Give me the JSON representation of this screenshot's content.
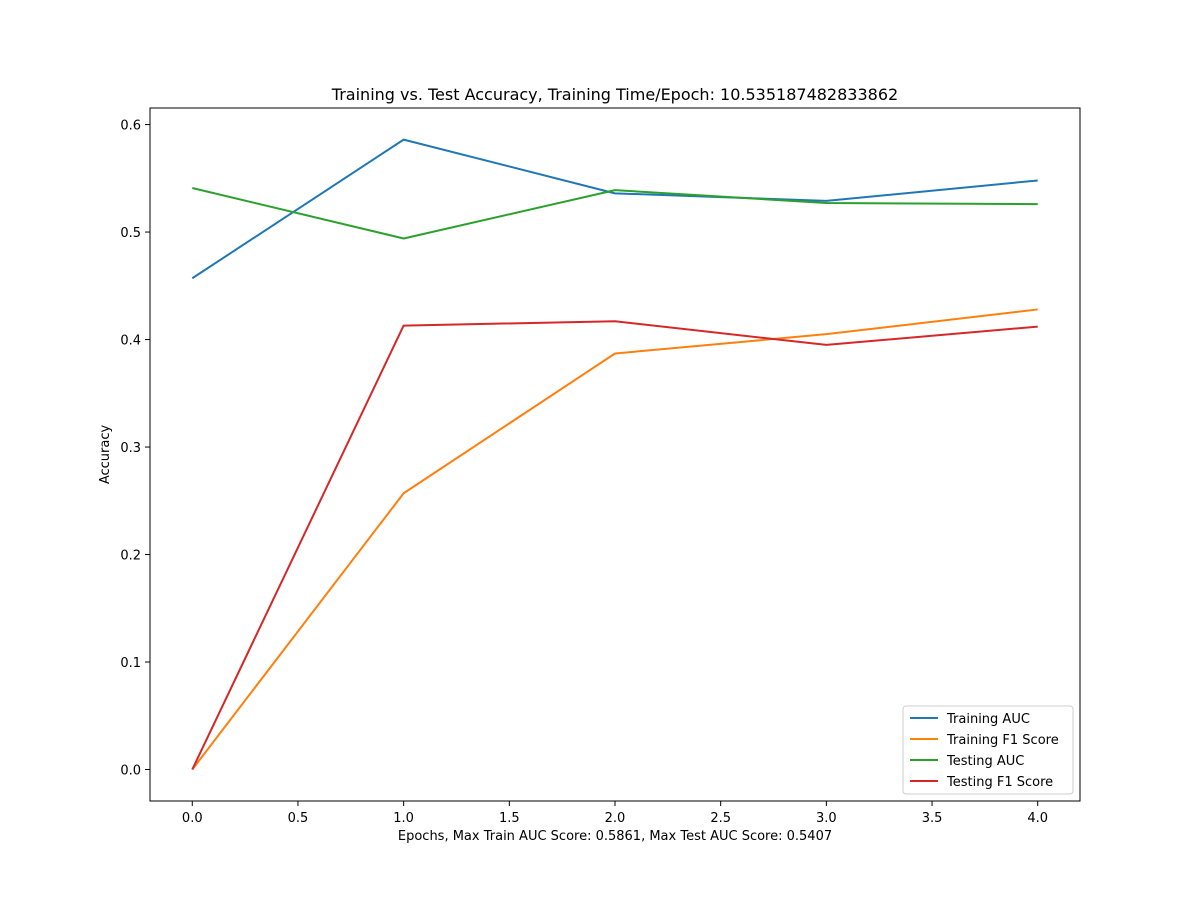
{
  "chart_data": {
    "type": "line",
    "title": "Training vs. Test Accuracy, Training Time/Epoch: 10.535187482833862",
    "xlabel": "Epochs, Max Train AUC Score: 0.5861, Max Test AUC Score: 0.5407",
    "ylabel": "Accuracy",
    "x": [
      0,
      1,
      2,
      3,
      4
    ],
    "xlim": [
      -0.2,
      4.2
    ],
    "ylim": [
      -0.0293,
      0.6154
    ],
    "xticks": [
      "0.0",
      "0.5",
      "1.0",
      "1.5",
      "2.0",
      "2.5",
      "3.0",
      "3.5",
      "4.0"
    ],
    "yticks": [
      "0.0",
      "0.1",
      "0.2",
      "0.3",
      "0.4",
      "0.5",
      "0.6"
    ],
    "grid": false,
    "legend_position": "lower-right",
    "series": [
      {
        "name": "Training AUC",
        "color": "#1f77b4",
        "values": [
          0.457,
          0.586,
          0.536,
          0.529,
          0.548
        ]
      },
      {
        "name": "Training F1 Score",
        "color": "#ff7f0e",
        "values": [
          0.0,
          0.257,
          0.387,
          0.405,
          0.428
        ]
      },
      {
        "name": "Testing AUC",
        "color": "#2ca02c",
        "values": [
          0.541,
          0.494,
          0.539,
          0.527,
          0.526
        ]
      },
      {
        "name": "Testing F1 Score",
        "color": "#d62728",
        "values": [
          0.0,
          0.413,
          0.417,
          0.395,
          0.412
        ]
      }
    ]
  }
}
